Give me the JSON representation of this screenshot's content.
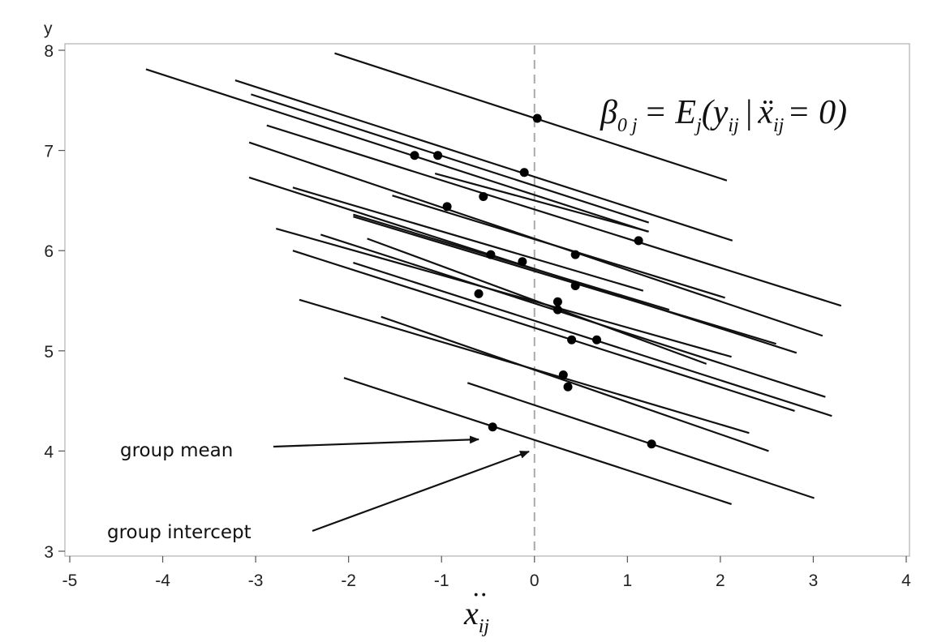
{
  "chart_data": {
    "type": "line",
    "title": "",
    "xlabel": "ẍij",
    "xlabel_base": "x",
    "xlabel_sub": "ij",
    "ylabel": "y",
    "xlim": [
      -5,
      4
    ],
    "ylim": [
      3,
      8
    ],
    "xticks": [
      -5,
      -4,
      -3,
      -2,
      -1,
      0,
      1,
      2,
      3,
      4
    ],
    "yticks": [
      3,
      4,
      5,
      6,
      7,
      8
    ],
    "grid": false,
    "reference_line": {
      "x": 0,
      "style": "dashed",
      "color": "#aaaaaa"
    },
    "formula": {
      "lhs": "β",
      "lhs_sub": "0 j",
      "rest": "= E",
      "rest_sub": "j",
      "paren_open": "(y",
      "paren_sub": "ij",
      "bar": "|",
      "cond": "ẍ",
      "cond_sub": "ij",
      "tail": "= 0)"
    },
    "annotations": [
      {
        "text": "group mean",
        "arrow_to": [
          -0.6,
          4.12
        ]
      },
      {
        "text": "group intercept",
        "arrow_to": [
          -0.05,
          4.0
        ]
      }
    ],
    "line_color": "#111111",
    "point_color": "#000000",
    "series": [
      {
        "x1": -2.15,
        "y1": 7.97,
        "x2": 2.07,
        "y2": 6.7,
        "points": [
          [
            0.03,
            7.32
          ]
        ]
      },
      {
        "x1": -4.18,
        "y1": 7.81,
        "x2": 1.22,
        "y2": 6.19,
        "points": [
          [
            -1.29,
            6.95
          ],
          [
            -1.04,
            6.95
          ],
          [
            1.12,
            6.1
          ]
        ]
      },
      {
        "x1": -3.22,
        "y1": 7.7,
        "x2": 2.13,
        "y2": 6.1,
        "points": []
      },
      {
        "x1": -3.05,
        "y1": 7.56,
        "x2": 1.23,
        "y2": 6.28,
        "points": [
          [
            -0.11,
            6.78
          ]
        ]
      },
      {
        "x1": -2.88,
        "y1": 7.25,
        "x2": 3.3,
        "y2": 5.45,
        "points": []
      },
      {
        "x1": -1.07,
        "y1": 6.77,
        "x2": 1.23,
        "y2": 6.19,
        "points": []
      },
      {
        "x1": -3.07,
        "y1": 7.08,
        "x2": 3.1,
        "y2": 5.15,
        "points": [
          [
            -0.55,
            6.54
          ]
        ]
      },
      {
        "x1": -1.53,
        "y1": 6.55,
        "x2": 2.05,
        "y2": 5.53,
        "points": [
          [
            -0.94,
            6.44
          ]
        ]
      },
      {
        "x1": -3.07,
        "y1": 6.73,
        "x2": 2.82,
        "y2": 4.98,
        "points": [
          [
            0.44,
            5.96
          ]
        ]
      },
      {
        "x1": -2.6,
        "y1": 6.63,
        "x2": 1.17,
        "y2": 5.6,
        "points": []
      },
      {
        "x1": -1.95,
        "y1": 6.36,
        "x2": 1.45,
        "y2": 5.41,
        "points": [
          [
            -0.47,
            5.96
          ],
          [
            -0.13,
            5.89
          ],
          [
            0.44,
            5.65
          ]
        ]
      },
      {
        "x1": -1.95,
        "y1": 6.34,
        "x2": 2.6,
        "y2": 5.07,
        "points": []
      },
      {
        "x1": -2.78,
        "y1": 6.22,
        "x2": 2.12,
        "y2": 4.94,
        "points": []
      },
      {
        "x1": -2.3,
        "y1": 6.16,
        "x2": 3.13,
        "y2": 4.54,
        "points": [
          [
            0.25,
            5.49
          ],
          [
            0.25,
            5.41
          ]
        ]
      },
      {
        "x1": -1.8,
        "y1": 6.12,
        "x2": 1.85,
        "y2": 4.87,
        "points": [
          [
            -0.6,
            5.57
          ]
        ]
      },
      {
        "x1": -2.6,
        "y1": 6.0,
        "x2": 2.8,
        "y2": 4.4,
        "points": [
          [
            0.4,
            5.11
          ],
          [
            0.67,
            5.11
          ]
        ]
      },
      {
        "x1": -1.95,
        "y1": 5.88,
        "x2": 3.2,
        "y2": 4.35,
        "points": []
      },
      {
        "x1": -2.53,
        "y1": 5.51,
        "x2": 2.31,
        "y2": 4.18,
        "points": [
          [
            0.31,
            4.76
          ]
        ]
      },
      {
        "x1": -1.65,
        "y1": 5.34,
        "x2": 2.52,
        "y2": 4.0,
        "points": [
          [
            0.36,
            4.64
          ]
        ]
      },
      {
        "x1": -0.72,
        "y1": 4.68,
        "x2": 3.01,
        "y2": 3.53,
        "points": [
          [
            1.26,
            4.07
          ]
        ]
      },
      {
        "x1": -2.05,
        "y1": 4.73,
        "x2": 2.12,
        "y2": 3.47,
        "points": [
          [
            -0.45,
            4.24
          ]
        ]
      }
    ]
  }
}
